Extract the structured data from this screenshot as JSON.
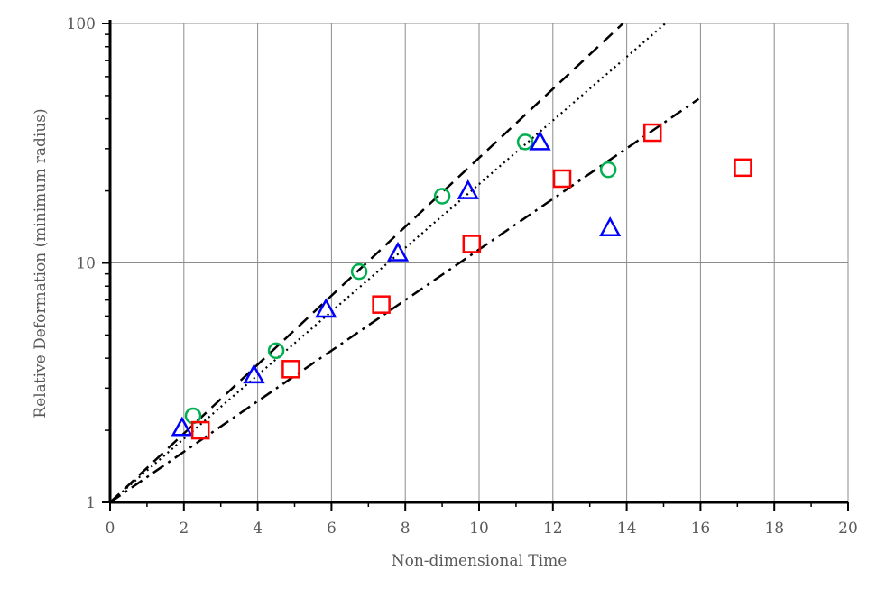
{
  "chart_data": {
    "type": "scatter",
    "title": "",
    "xlabel": "Non-dimensional Time",
    "ylabel": "Relative Deformation (minimum radius)",
    "xlim": [
      0,
      20
    ],
    "ylim": [
      1,
      100
    ],
    "yscale": "log",
    "grid": true,
    "x_ticks": [
      "0",
      "2",
      "4",
      "6",
      "8",
      "10",
      "12",
      "14",
      "16",
      "18",
      "20"
    ],
    "y_ticks": [
      "1",
      "10",
      "100"
    ],
    "series": [
      {
        "marker": "circle",
        "color": "#00b050",
        "points": [
          [
            2.25,
            2.3
          ],
          [
            4.5,
            4.3
          ],
          [
            6.75,
            9.2
          ],
          [
            9.0,
            19.0
          ],
          [
            11.25,
            32.0
          ],
          [
            13.5,
            24.5
          ]
        ]
      },
      {
        "marker": "triangle",
        "color": "#0000ff",
        "points": [
          [
            1.95,
            2.05
          ],
          [
            3.9,
            3.4
          ],
          [
            5.85,
            6.4
          ],
          [
            7.8,
            11.0
          ],
          [
            9.7,
            20.0
          ],
          [
            11.65,
            32.0
          ],
          [
            13.55,
            14.0
          ]
        ]
      },
      {
        "marker": "square",
        "color": "#ff0000",
        "points": [
          [
            2.45,
            2.0
          ],
          [
            4.9,
            3.6
          ],
          [
            7.35,
            6.7
          ],
          [
            9.8,
            12.0
          ],
          [
            12.25,
            22.5
          ],
          [
            14.7,
            35.0
          ],
          [
            17.15,
            25.0
          ]
        ]
      }
    ],
    "lines": [
      {
        "style": "dashed",
        "color": "#000000",
        "x_end": 13.9,
        "slope": 0.3313
      },
      {
        "style": "dotted",
        "color": "#000000",
        "x_end": 15.05,
        "slope": 0.306
      },
      {
        "style": "dash-dot",
        "color": "#000000",
        "x_end": 15.95,
        "slope": 0.2432
      }
    ]
  }
}
